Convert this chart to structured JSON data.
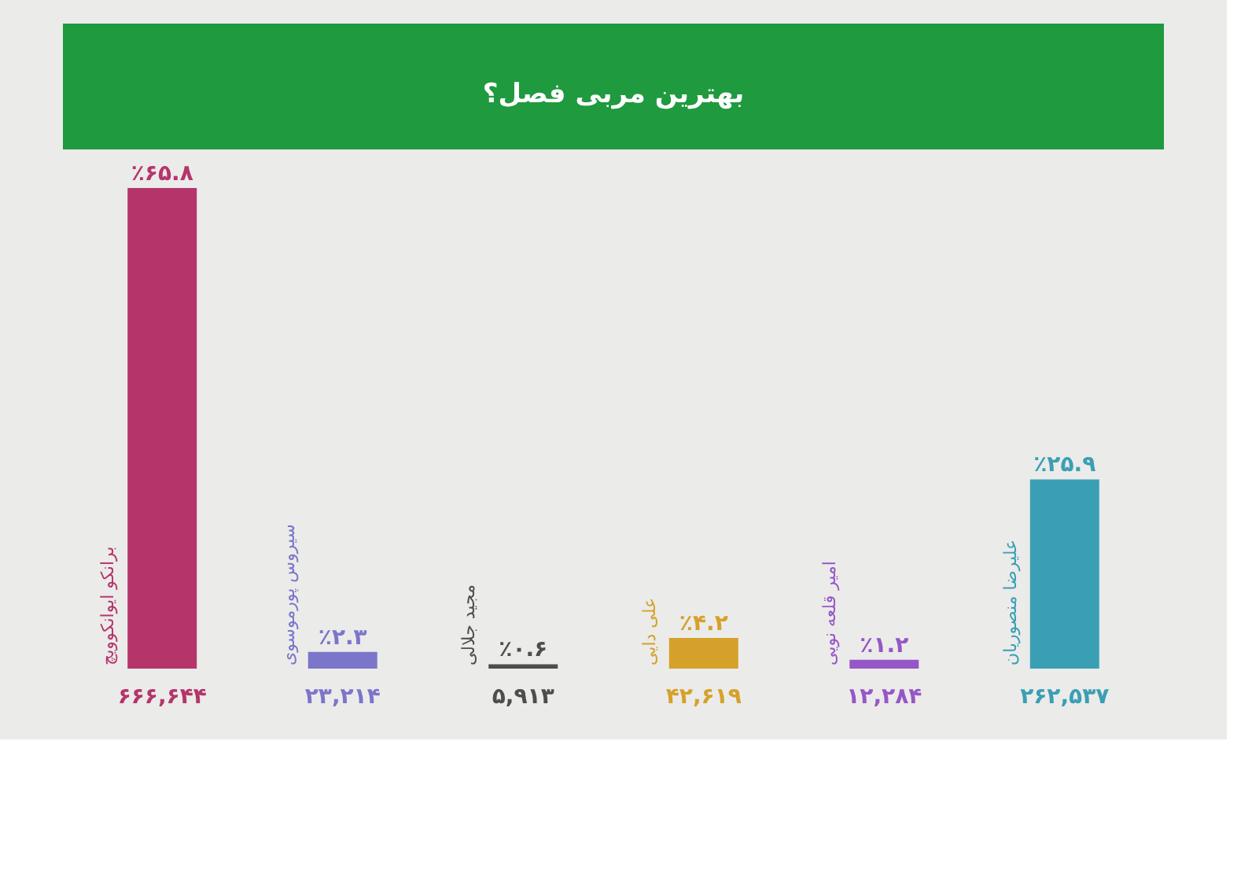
{
  "chart_data": {
    "type": "bar",
    "title": "بهترین مربی فصل؟",
    "categories": [
      "برانکو ایوانکوویچ",
      "سیروس پورموسوی",
      "مجید جلالی",
      "علی دایی",
      "امیر قلعه نویی",
      "علیرضا منصوریان"
    ],
    "values": [
      65.8,
      2.3,
      0.6,
      4.2,
      1.2,
      25.9
    ],
    "colors": [
      "#b5356b",
      "#7b76c9",
      "#4d4d4d",
      "#d6a12a",
      "#9657c6",
      "#3a9fb4"
    ],
    "value_labels": [
      "٪۶۵.۸",
      "٪۲.۳",
      "٪۰.۶",
      "٪۴.۲",
      "٪۱.۲",
      "٪۲۵.۹"
    ],
    "annotations": [
      "۶۶۶,۶۴۴",
      "۲۳,۲۱۴",
      "۵,۹۱۳",
      "۴۲,۶۱۹",
      "۱۲,۲۸۴",
      "۲۶۲,۵۳۷"
    ]
  }
}
